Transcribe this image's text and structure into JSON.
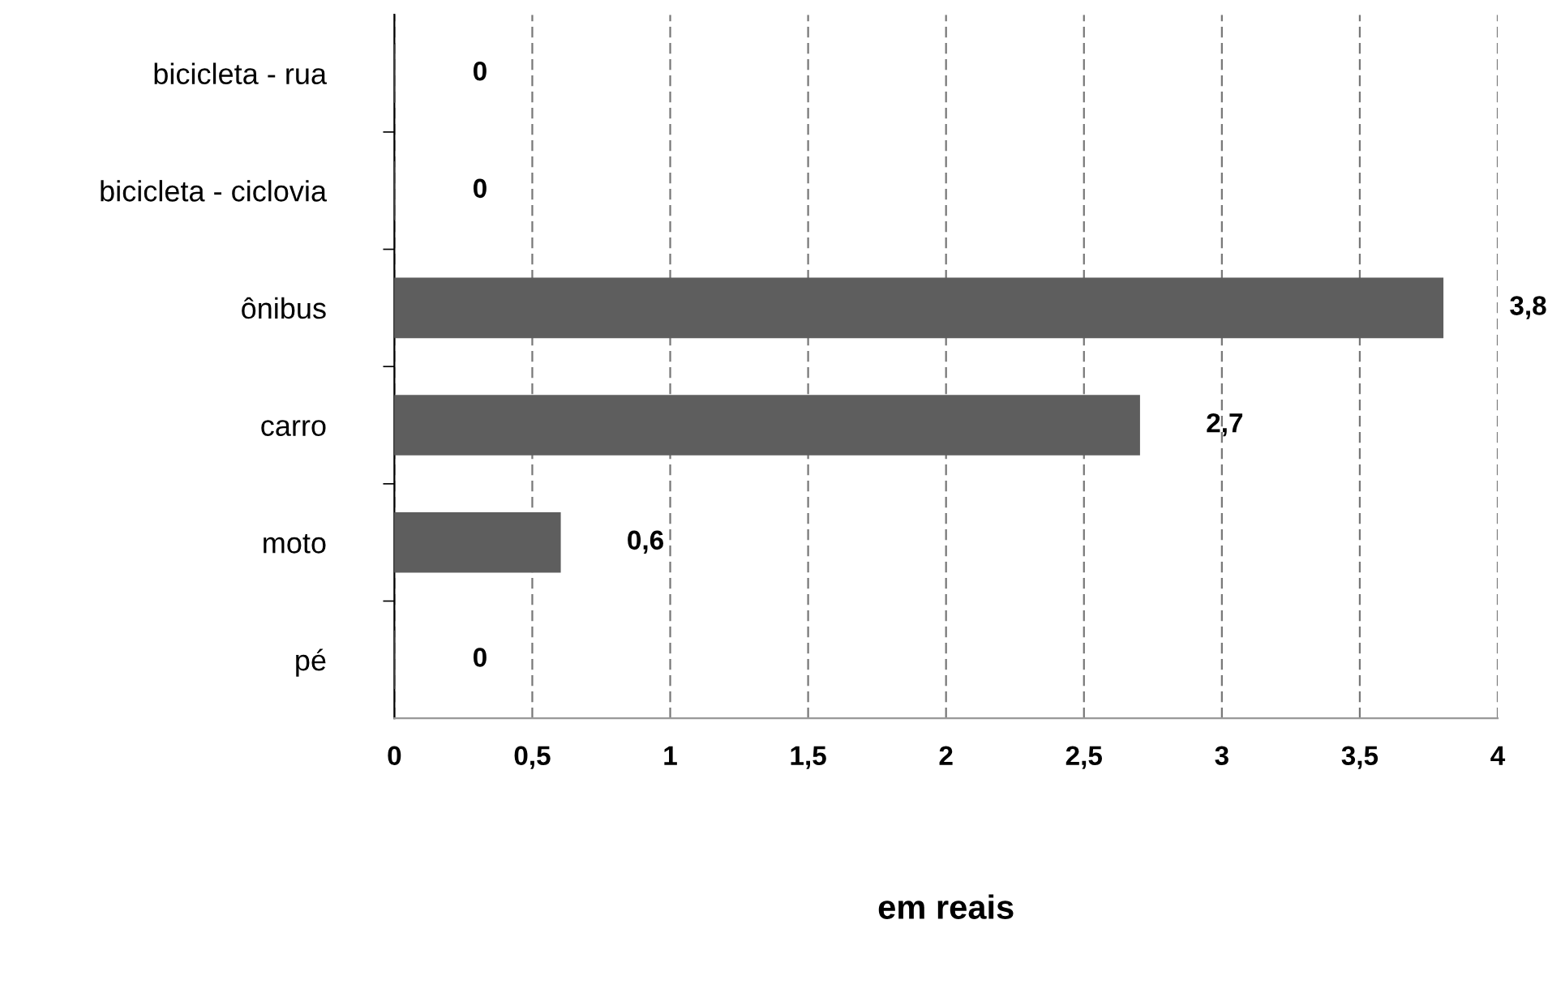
{
  "chart_data": {
    "type": "bar",
    "orientation": "horizontal",
    "xlabel": "em reais",
    "categories": [
      "bicicleta - rua",
      "bicicleta - ciclovia",
      "ônibus",
      "carro",
      "moto",
      "pé"
    ],
    "values": [
      0,
      0,
      3.8,
      2.7,
      0.6,
      0
    ],
    "value_labels": [
      "0",
      "0",
      "3,8",
      "2,7",
      "0,6",
      "0"
    ],
    "color": "#5e5e5e",
    "xlim": [
      0,
      4
    ],
    "xticks": [
      0,
      {
        "value": 0.5,
        "label": "0,5"
      },
      1,
      {
        "value": 1.5,
        "label": "1,5"
      },
      2,
      {
        "value": 2.5,
        "label": "2,5"
      },
      3,
      {
        "value": 3.5,
        "label": "3,5"
      },
      4
    ],
    "grid": "x"
  }
}
